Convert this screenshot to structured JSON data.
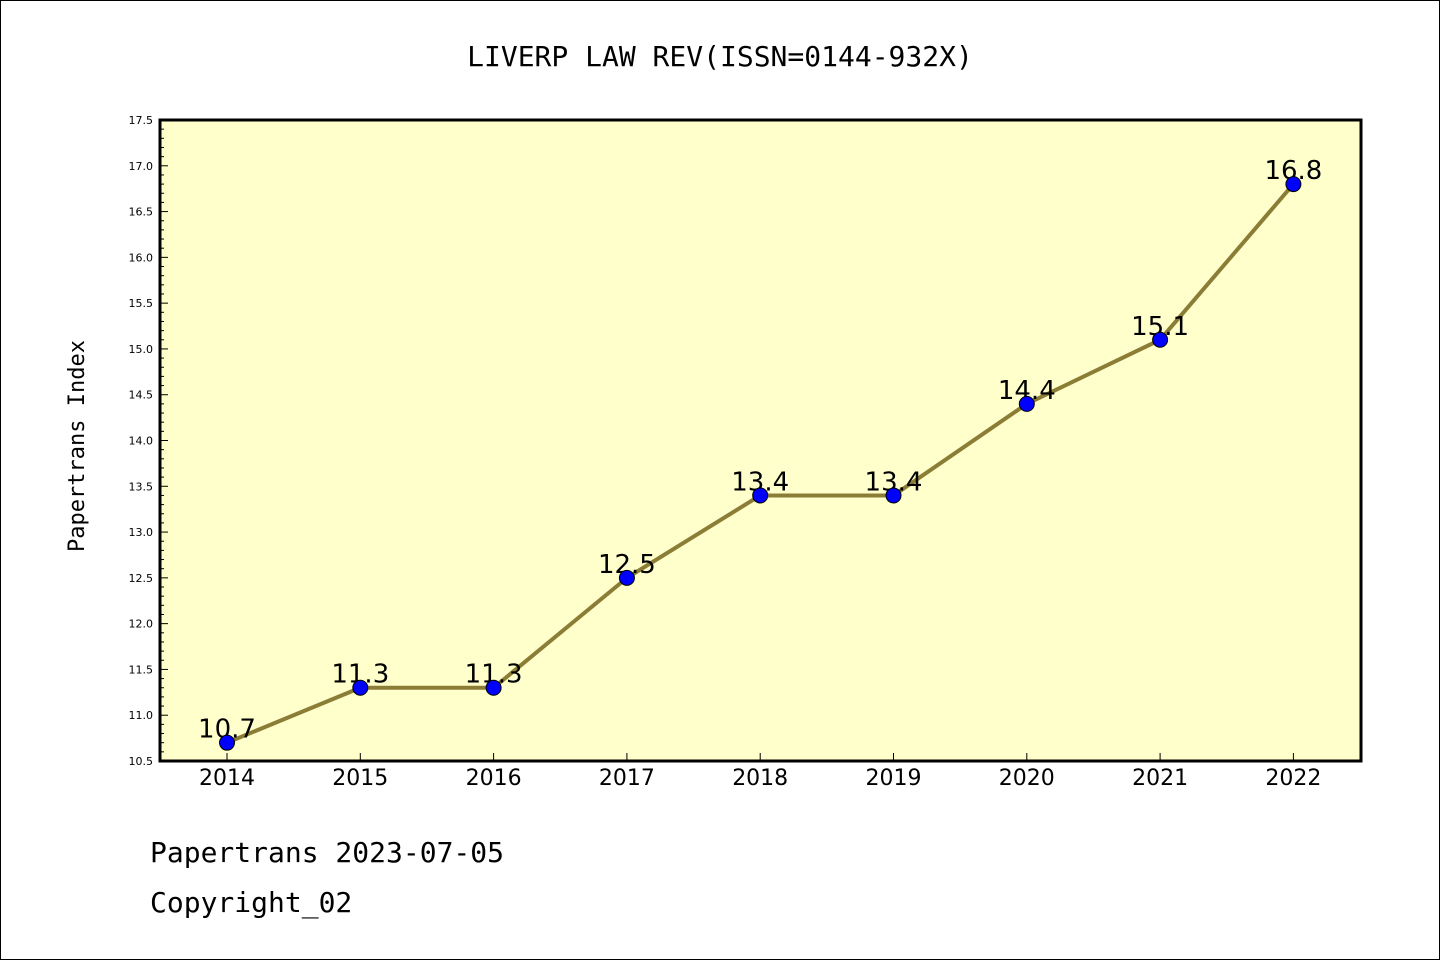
{
  "footer": {
    "line1": "Papertrans 2023-07-05",
    "line2": "Copyright_02"
  },
  "colors": {
    "plot_background": "#ffffcc",
    "line": "#8b7d35",
    "marker": "#0000ff"
  },
  "chart_data": {
    "type": "line",
    "title": "LIVERP LAW REV(ISSN=0144-932X)",
    "xlabel": "",
    "ylabel": "Papertrans Index",
    "x": [
      "2014",
      "2015",
      "2016",
      "2017",
      "2018",
      "2019",
      "2020",
      "2021",
      "2022"
    ],
    "values": [
      10.7,
      11.3,
      11.3,
      12.5,
      13.4,
      13.4,
      14.4,
      15.1,
      16.8
    ],
    "data_labels": [
      "10.7",
      "11.3",
      "11.3",
      "12.5",
      "13.4",
      "13.4",
      "14.4",
      "15.1",
      "16.8"
    ],
    "ylim": [
      10.5,
      17.5
    ],
    "yticks": [
      "10.5",
      "11.0",
      "11.5",
      "12.0",
      "12.5",
      "13.0",
      "13.5",
      "14.0",
      "14.5",
      "15.0",
      "15.5",
      "16.0",
      "16.5",
      "17.0",
      "17.5"
    ],
    "grid": false,
    "legend": "none"
  }
}
